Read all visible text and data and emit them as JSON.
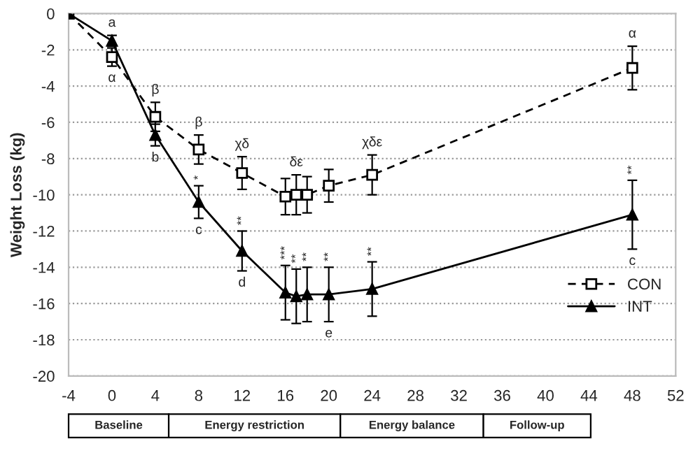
{
  "chart_data": {
    "type": "line",
    "ylabel": "Weight Loss (kg)",
    "xlim": [
      -4,
      52
    ],
    "xticks": [
      -4,
      0,
      4,
      8,
      12,
      16,
      20,
      24,
      28,
      32,
      36,
      40,
      44,
      48,
      52
    ],
    "ylim": [
      -20,
      0
    ],
    "yticks": [
      -20,
      -18,
      -16,
      -14,
      -12,
      -10,
      -8,
      -6,
      -4,
      -2,
      0
    ],
    "grid": "y",
    "legend": "bottom right",
    "series": [
      {
        "name": "CON",
        "color": "#000000",
        "marker": "square",
        "line_style": "dashed",
        "x": [
          -4,
          0,
          4,
          8,
          12,
          16,
          17,
          18,
          20,
          24,
          48
        ],
        "values": [
          0,
          -2.4,
          -5.7,
          -7.5,
          -8.8,
          -10.1,
          -10.0,
          -10.0,
          -9.5,
          -8.9,
          -3.0
        ],
        "errors": [
          null,
          0.5,
          0.8,
          0.8,
          0.9,
          1.0,
          1.1,
          1.0,
          0.9,
          1.1,
          1.2
        ]
      },
      {
        "name": "INT",
        "color": "#000000",
        "marker": "triangle",
        "line_style": "solid",
        "x": [
          -4,
          0,
          4,
          8,
          12,
          16,
          17,
          18,
          20,
          24,
          48
        ],
        "values": [
          0,
          -1.5,
          -6.7,
          -10.4,
          -13.1,
          -15.4,
          -15.6,
          -15.5,
          -15.5,
          -15.2,
          -11.1
        ],
        "errors": [
          null,
          0.3,
          0.6,
          0.9,
          1.1,
          1.5,
          1.5,
          1.5,
          1.5,
          1.5,
          1.9
        ]
      }
    ],
    "annotations": [
      {
        "text": "a",
        "x": 0,
        "y": -1.2
      },
      {
        "text": "α",
        "x": 0,
        "y": -2.9
      },
      {
        "text": "β",
        "x": 4,
        "y": -4.9
      },
      {
        "text": "β",
        "x": 8,
        "y": -6.7
      },
      {
        "text": "χδ",
        "x": 12,
        "y": -7.9
      },
      {
        "text": "δε",
        "x": 17,
        "y": -8.9
      },
      {
        "text": "χδε",
        "x": 24,
        "y": -7.8
      },
      {
        "text": "α",
        "x": 48,
        "y": -1.8
      },
      {
        "text": "b",
        "x": 4,
        "y": -7.3
      },
      {
        "text": "c",
        "x": 8,
        "y": -11.3
      },
      {
        "text": "d",
        "x": 12,
        "y": -14.2
      },
      {
        "text": "e",
        "x": 20,
        "y": -17.0
      },
      {
        "text": "c",
        "x": 48,
        "y": -13.0
      },
      {
        "text": "*",
        "x": 8,
        "y": -9.5
      },
      {
        "text": "**",
        "x": 12,
        "y": -12.0
      },
      {
        "text": "***",
        "x": 16,
        "y": -13.9
      },
      {
        "text": "**",
        "x": 17,
        "y": -14.1
      },
      {
        "text": "**",
        "x": 18,
        "y": -14.0
      },
      {
        "text": "**",
        "x": 20,
        "y": -14.0
      },
      {
        "text": "**",
        "x": 24,
        "y": -13.7
      },
      {
        "text": "**",
        "x": 48,
        "y": -9.2
      },
      "Baseline",
      "Energy restriction",
      "Energy balance",
      "Follow-up"
    ]
  }
}
